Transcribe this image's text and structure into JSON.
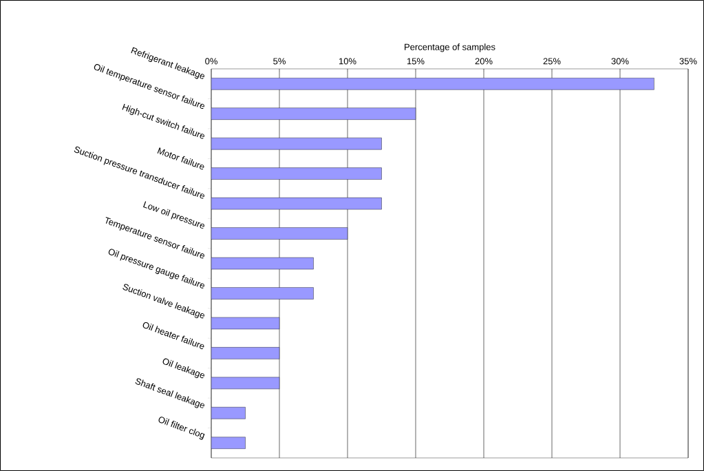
{
  "chart_data": {
    "type": "bar",
    "orientation": "horizontal",
    "xlabel": "Percentage of samples",
    "categories": [
      "Refrigerant leakage",
      "Oil temperature sensor failure",
      "High-cut switch failure",
      "Motor failure",
      "Suction pressure transducer failure",
      "Low oil pressure",
      "Temperature sensor failure",
      "Oil pressure gauge failure",
      "Suction valve leakage",
      "Oil heater failure",
      "Oil leakage",
      "Shaft seal leakage",
      "Oil filter clog"
    ],
    "values": [
      32.5,
      15,
      12.5,
      12.5,
      12.5,
      10,
      7.5,
      7.5,
      5,
      5,
      5,
      2.5,
      2.5
    ],
    "color": "#9999ff",
    "xlim": [
      0,
      35
    ],
    "xticks": [
      {
        "value": 0,
        "label": "0%"
      },
      {
        "value": 5,
        "label": "5%"
      },
      {
        "value": 10,
        "label": "10%"
      },
      {
        "value": 15,
        "label": "15%"
      },
      {
        "value": 20,
        "label": "20%"
      },
      {
        "value": 25,
        "label": "25%"
      },
      {
        "value": 30,
        "label": "30%"
      },
      {
        "value": 35,
        "label": "35%"
      }
    ],
    "grid": "x"
  }
}
